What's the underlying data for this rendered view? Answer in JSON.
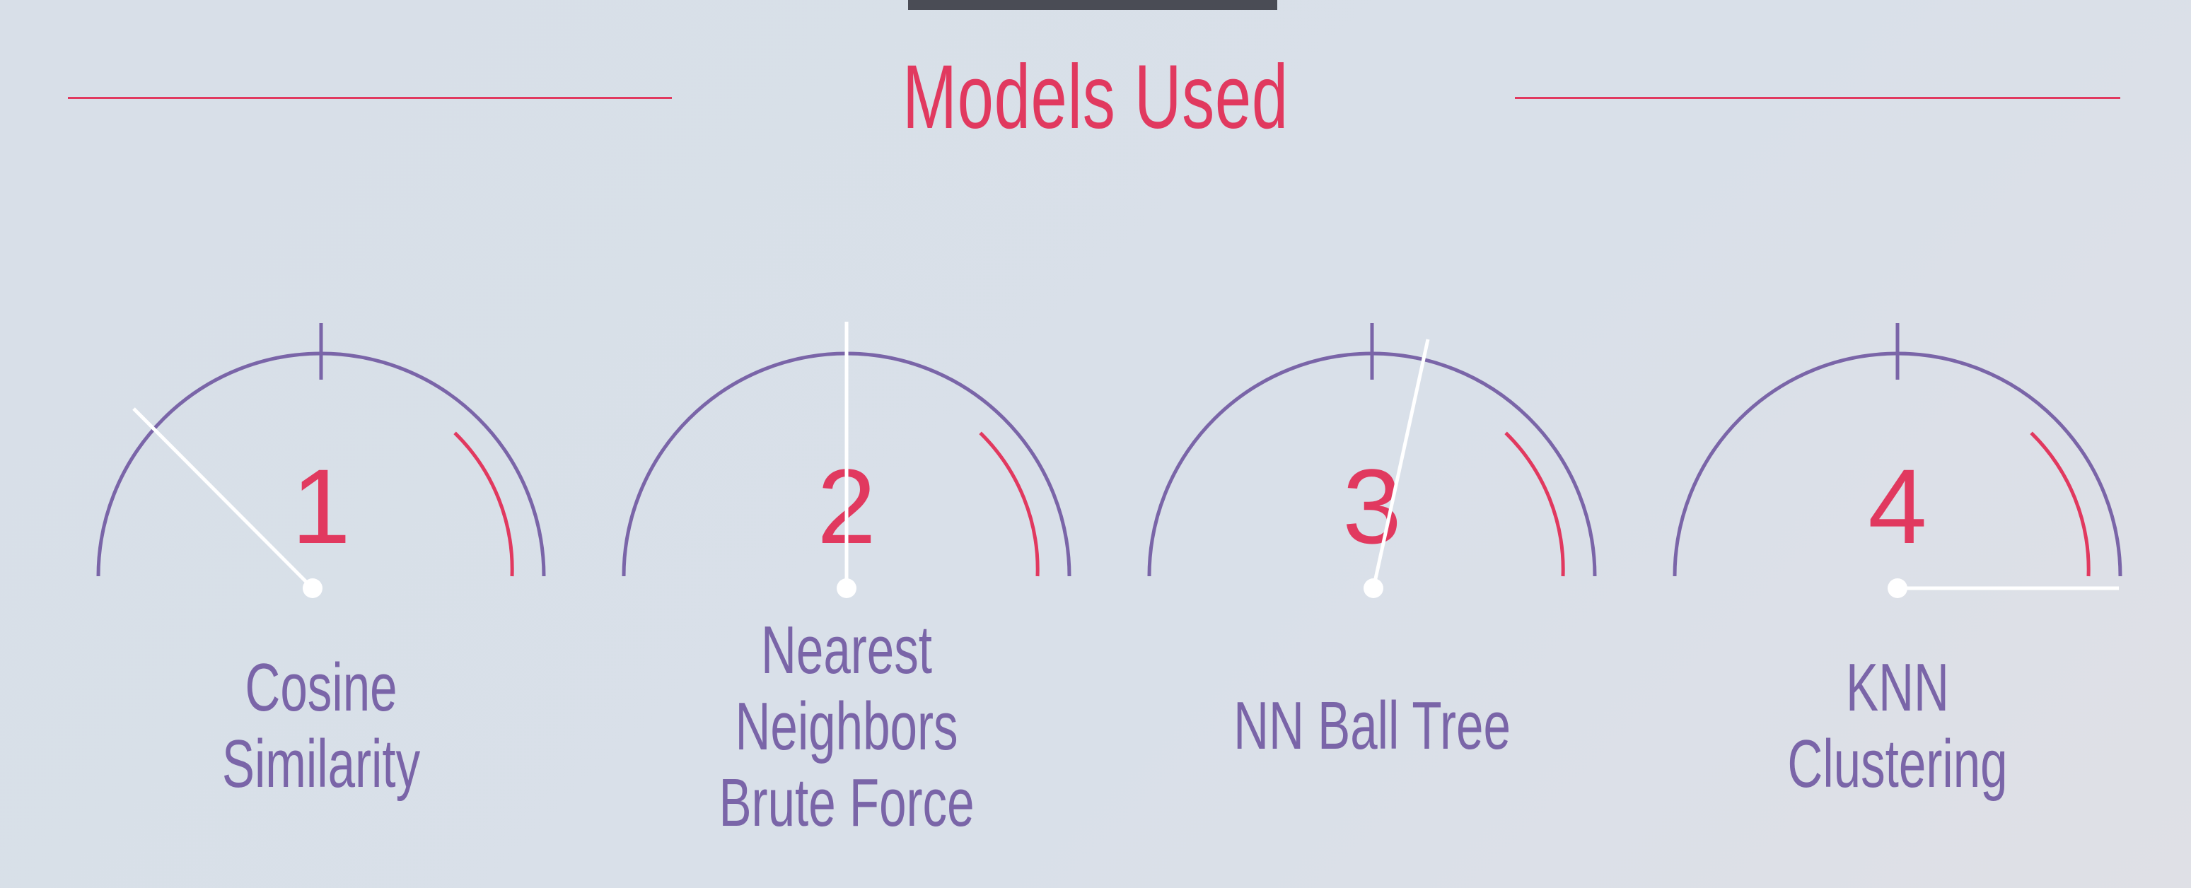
{
  "title": "Models Used",
  "colors": {
    "accent": "#e1395f",
    "purple": "#7a65a8",
    "needle": "#ffffff",
    "background": "#d9e0e9"
  },
  "gauges": [
    {
      "number": "1",
      "label": "Cosine\nSimilarity"
    },
    {
      "number": "2",
      "label": "Nearest\nNeighbors\nBrute Force"
    },
    {
      "number": "3",
      "label": "NN Ball Tree"
    },
    {
      "number": "4",
      "label": "KNN\nClustering"
    }
  ]
}
